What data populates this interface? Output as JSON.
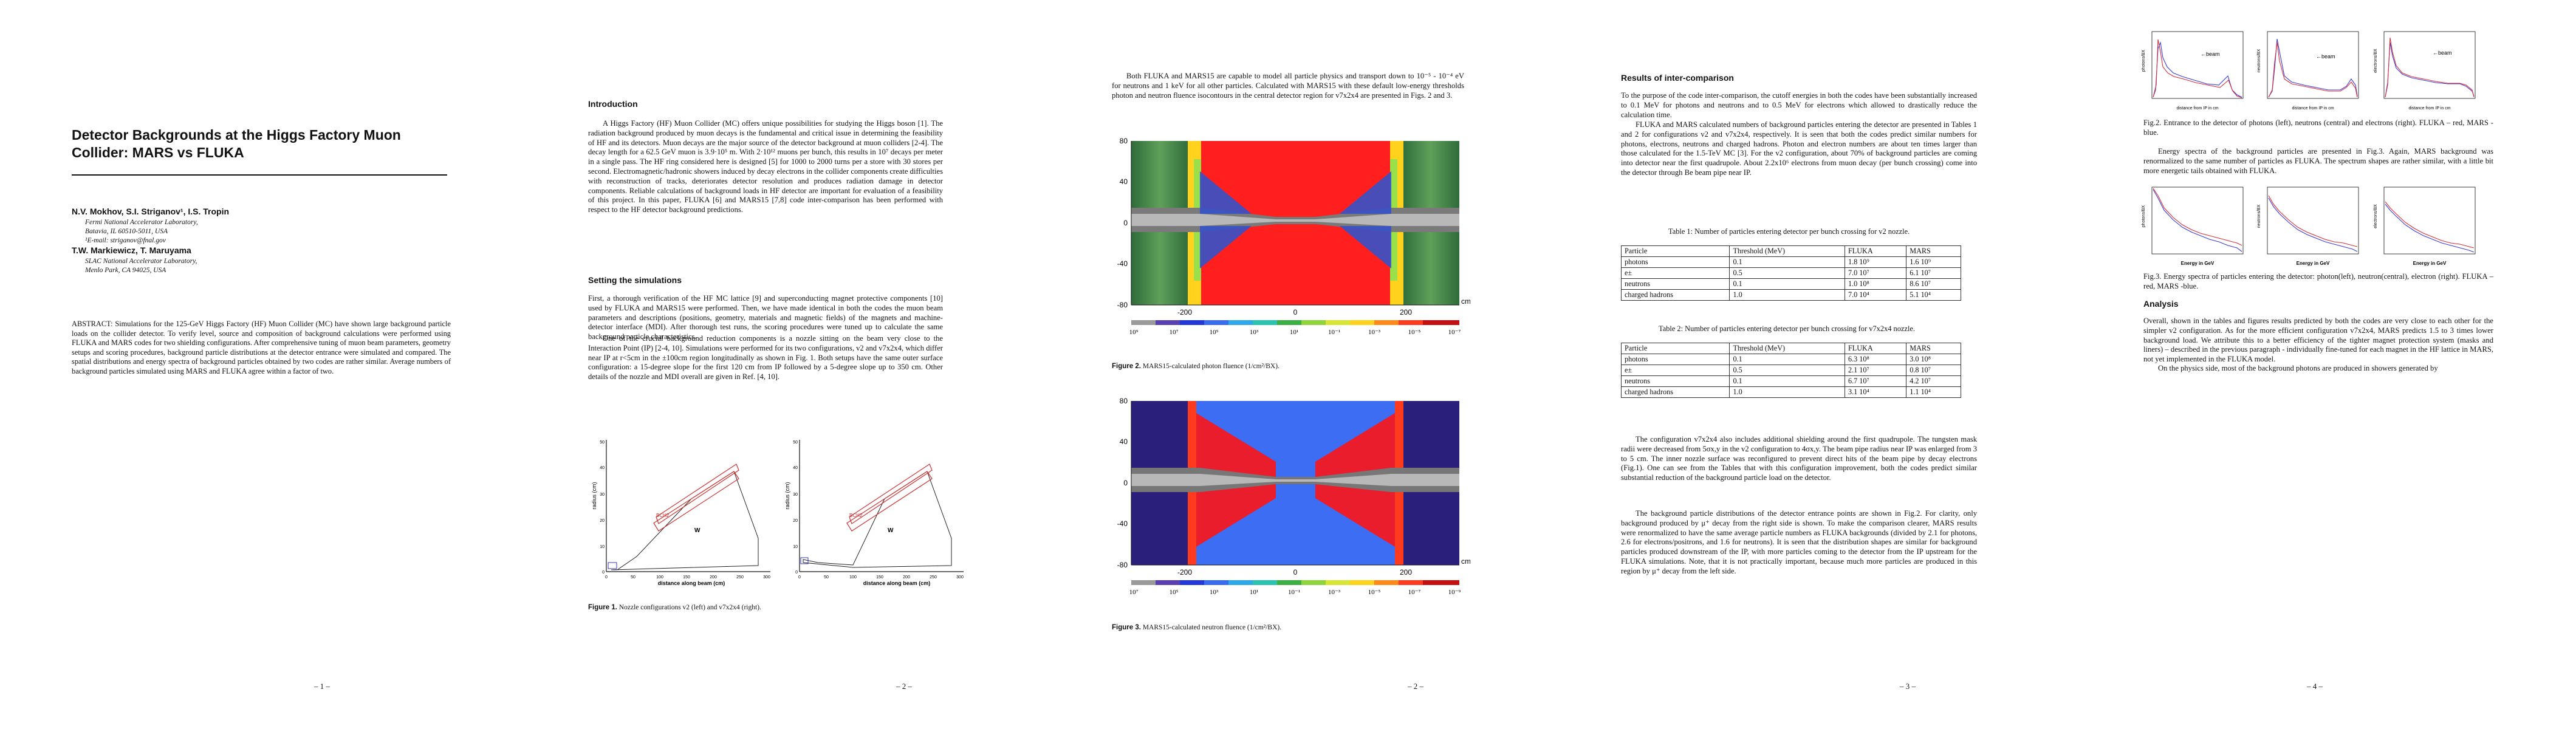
{
  "page1": {
    "title": "Detector Backgrounds at the Higgs Factory Muon Collider: MARS vs FLUKA",
    "authors1": "N.V. Mokhov, S.I. Striganov¹, I.S. Tropin",
    "aff1a": "Fermi National Accelerator Laboratory,",
    "aff1b": "Batavia, IL 60510-5011, USA",
    "aff1c": "¹E-mail: striganov@fnal.gov",
    "authors2": "T.W. Markiewicz, T. Maruyama",
    "aff2a": "SLAC National Accelerator Laboratory,",
    "aff2b": "Menlo Park, CA 94025, USA",
    "abstract": "ABSTRACT: Simulations for the 125-GeV Higgs Factory (HF) Muon Collider (MC) have shown large background particle loads on the collider detector. To verify level, source and composition of background calculations were performed using FLUKA and MARS codes for two shielding configurations. After comprehensive tuning of muon beam parameters, geometry setups and scoring procedures, background particle distributions at the detector entrance were simulated and compared. The spatial distributions and energy spectra of background particles obtained by two codes are rather similar. Average numbers of background particles simulated using MARS and FLUKA agree within a factor of two.",
    "page_number": "– 1 –"
  },
  "page2": {
    "intro_heading": "Introduction",
    "intro_text": "A Higgs Factory (HF) Muon Collider (MC) offers unique possibilities for studying the Higgs boson [1]. The radiation background produced by muon decays is the fundamental and critical issue in determining the feasibility of HF and its detectors. Muon decays are the major source of the detector background at muon colliders [2-4]. The decay length for a 62.5 GeV muon is 3.9·10⁵ m. With 2·10¹² muons per bunch, this results in 10⁷ decays per meter in a single pass. The HF ring considered here is designed [5] for 1000 to 2000 turns per a store with 30 stores per second. Electromagnetic/hadronic showers induced by decay electrons in the collider components create difficulties with reconstruction of tracks, deteriorates detector resolution and produces radiation damage in detector components. Reliable calculations of background loads in HF detector are important for evaluation of a feasibility of this project. In this paper, FLUKA [6] and MARS15 [7,8] code inter-comparison has been performed with respect to the HF detector background predictions.",
    "sim_heading": "Setting the simulations",
    "sim_text1": "First, a thorough verification of the HF MC lattice [9] and superconducting magnet protective components [10] used by FLUKA and MARS15 were performed. Then, we have made identical in both the codes the muon beam parameters and descriptions (positions, geometry, materials and magnetic fields) of the magnets and machine-detector interface (MDI). After thorough test runs, the scoring procedures were tuned up to calculate the same background particle characteristics.",
    "sim_text2": "One of the crucial background reduction components is a nozzle sitting on the beam very close to the Interaction Point (IP) [2-4, 10]. Simulations were performed for its two configurations, v2 and v7x2x4, which differ near IP at r<5cm in the ±100cm region longitudinally as shown in Fig. 1. Both setups have the same outer surface configuration: a 15-degree slope for the first 120 cm from IP followed by a 5-degree slope up to 350 cm. Other details of the nozzle and MDI overall are given in Ref. [4, 10].",
    "fig1_ylabel": "radius (cm)",
    "fig1_xlabel_left": "distance along beam (cm)",
    "fig1_xlabel_right": "distance along beam (cm)",
    "fig1_label_w": "W",
    "fig1_label_bch": "BCH2",
    "fig1_caption_label": "Figure 1.",
    "fig1_caption": " Nozzle configurations v2 (left) and v7x2x4 (right).",
    "page_number": "– 2 –"
  },
  "page3": {
    "intro_text": "Both FLUKA and MARS15 are capable to model all particle physics and transport down to 10⁻⁵ - 10⁻⁴ eV for neutrons and 1 keV for all other particles. Calculated with MARS15 with these default low-energy thresholds photon and neutron fluence isocontours in the central detector region for v7x2x4 are presented in Figs. 2 and 3.",
    "fig2_caption_label": "Figure 2.",
    "fig2_caption": " MARS15-calculated photon fluence (1/cm²/BX).",
    "fig3_caption_label": "Figure 3.",
    "fig3_caption": " MARS15-calculated neutron fluence (1/cm²/BX).",
    "yticks": [
      "80",
      "40",
      "0",
      "-40",
      "-80"
    ],
    "xticks": [
      "-200",
      "0",
      "200"
    ],
    "unit": "cm",
    "scale2": [
      "10⁹",
      "10⁷",
      "10⁵",
      "10³",
      "10¹",
      "10⁻¹",
      "10⁻³",
      "10⁻⁵",
      "10⁻⁷"
    ],
    "scale3": [
      "10⁷",
      "10⁵",
      "10³",
      "10¹",
      "10⁻¹",
      "10⁻³",
      "10⁻⁵",
      "10⁻⁷",
      "10⁻⁹"
    ],
    "page_number": "– 2 –"
  },
  "page4": {
    "heading": "Results of inter-comparison",
    "text1": "To the purpose of the code inter-comparison, the cutoff energies in both the codes have been substantially increased to 0.1 MeV for photons and neutrons and to 0.5 MeV for electrons which allowed to drastically reduce the calculation time.",
    "text2": "FLUKA and MARS calculated numbers of background particles entering the detector are presented in Tables 1 and 2 for configurations v2 and v7x2x4, respectively. It is seen that both the codes predict similar numbers for photons, electrons, neutrons and charged hadrons. Photon and electron numbers are about ten times larger than those calculated for the 1.5-TeV MC [3]. For the v2 configuration, about 70% of background particles are coming into detector near the first quadrupole. About 2.2x10⁶ electrons from muon decay (per bunch crossing) come into the detector through Be beam pipe near IP.",
    "table1_caption": "Table 1: Number of particles entering detector per bunch crossing for v2 nozzle.",
    "table2_caption": "Table 2: Number of particles entering detector per bunch crossing for v7x2x4 nozzle.",
    "table_header": [
      "Particle",
      "Threshold (MeV)",
      "FLUKA",
      "MARS"
    ],
    "table1_rows": [
      [
        "photons",
        "0.1",
        "1.8 10⁹",
        "1.6 10⁹"
      ],
      [
        "e±",
        "0.5",
        "7.0 10⁷",
        "6.1 10⁷"
      ],
      [
        "neutrons",
        "0.1",
        "1.0 10⁸",
        "8.6 10⁷"
      ],
      [
        "charged hadrons",
        "1.0",
        "7.0 10⁴",
        "5.1 10⁴"
      ]
    ],
    "table2_rows": [
      [
        "photons",
        "0.1",
        "6.3 10⁸",
        "3.0 10⁸"
      ],
      [
        "e±",
        "0.5",
        "2.1 10⁷",
        "0.8 10⁷"
      ],
      [
        "neutrons",
        "0.1",
        "6.7 10⁷",
        "4.2 10⁷"
      ],
      [
        "charged hadrons",
        "1.0",
        "3.1 10⁴",
        "1.1 10⁴"
      ]
    ],
    "text3": "The configuration v7x2x4 also includes additional shielding around the first quadrupole. The tungsten mask radii were decreased from 5σx,y in the v2 configuration to 4σx,y. The beam pipe radius near IP was enlarged from 3 to 5 cm. The inner nozzle surface was reconfigured to prevent direct hits of the beam pipe by decay electrons (Fig.1). One can see from the Tables that with this configuration improvement, both the codes predict similar substantial reduction of the background particle load on the detector.",
    "text4": "The background particle distributions of the detector entrance points are shown in Fig.2. For clarity, only background produced by μ⁺ decay from the right side is shown. To make the comparison clearer, MARS results were renormalized to have the same average particle numbers as FLUKA backgrounds (divided by 2.1 for photons, 2.6 for electrons/positrons, and 1.6 for neutrons). It is seen that the distribution shapes are similar for background particles produced downstream of the IP, with more particles coming to the detector from the IP upstream for the FLUKA simulations. Note, that it is not practically important, because much more particles are produced in this region by μ⁺ decay from the left side.",
    "page_number": "– 3 –"
  },
  "page5": {
    "fig2_caption": "Fig.2. Entrance to the detector of photons (left), neutrons (central) and electrons (right). FLUKA – red, MARS -blue.",
    "text1": "Energy spectra of the background particles are presented in Fig.3. Again, MARS background was renormalized to the same number of particles as FLUKA. The spectrum shapes are rather similar, with a little bit more energetic tails obtained with FLUKA.",
    "fig3_caption": "Fig.3. Energy spectra of particles entering the detector: photon(left), neutron(central), electron (right). FLUKA – red, MARS -blue.",
    "analysis_heading": "Analysis",
    "analysis_text": "Overall, shown in the tables and figures results predicted by both the codes are very close to each other for the simpler v2 configuration. As for the more efficient configuration v7x2x4, MARS predicts 1.5 to 3 times lower background load. We attribute this to a better efficiency of the tighter magnet protection system (masks and liners) – described in the previous paragraph - individually fine-tuned for each magnet in the HF lattice in MARS, not yet implemented in the FLUKA model.",
    "text_last": "On the physics side, most of the background photons are produced in showers generated by",
    "beam_label": "←beam",
    "xlabel_dist": "distance from IP in cm",
    "xlabel_energy": "Energy in GeV",
    "ylabels_top": [
      "photons/BX",
      "neutrons/BX",
      "electrons/BX"
    ],
    "ylabels_bottom": [
      "photons/BX",
      "neutrons/BX",
      "electrons/BX"
    ],
    "series_colors": {
      "fluka": "#d9303a",
      "mars": "#3b3bd6"
    },
    "page_number": "– 4 –"
  }
}
